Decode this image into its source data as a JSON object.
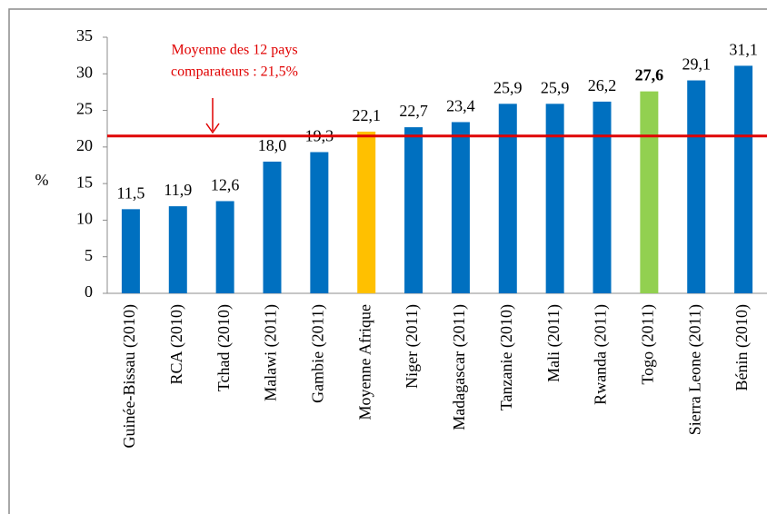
{
  "chart_data": {
    "type": "bar",
    "y_label": "%",
    "categories": [
      "Guinée-Bissau (2010)",
      "RCA (2010)",
      "Tchad (2010)",
      "Malawi (2011)",
      "Gambie (2011)",
      "Moyenne Afrique",
      "Niger (2011)",
      "Madagascar (2011)",
      "Tanzanie (2010)",
      "Mali (2011)",
      "Rwanda (2011)",
      "Togo (2011)",
      "Sierra Leone (2011)",
      "Bénin (2010)"
    ],
    "values": [
      11.5,
      11.9,
      12.6,
      18.0,
      19.3,
      22.1,
      22.7,
      23.4,
      25.9,
      25.9,
      26.2,
      27.6,
      29.1,
      31.1
    ],
    "value_labels": [
      "11,5",
      "11,9",
      "12,6",
      "18,0",
      "19,3",
      "22,1",
      "22,7",
      "23,4",
      "25,9",
      "25,9",
      "26,2",
      "27,6",
      "29,1",
      "31,1"
    ],
    "colors": [
      "#0070c0",
      "#0070c0",
      "#0070c0",
      "#0070c0",
      "#0070c0",
      "#ffc000",
      "#0070c0",
      "#0070c0",
      "#0070c0",
      "#0070c0",
      "#0070c0",
      "#92d050",
      "#0070c0",
      "#0070c0"
    ],
    "bold_value_label_index": 11,
    "reference_line": {
      "value": 21.5,
      "color": "#e00000",
      "annotation": [
        "Moyenne des 12 pays",
        "comparateurs : 21,5%"
      ]
    },
    "ylim": [
      0,
      35
    ],
    "yticks": [
      0,
      5,
      10,
      15,
      20,
      25,
      30,
      35
    ],
    "grid": false
  }
}
